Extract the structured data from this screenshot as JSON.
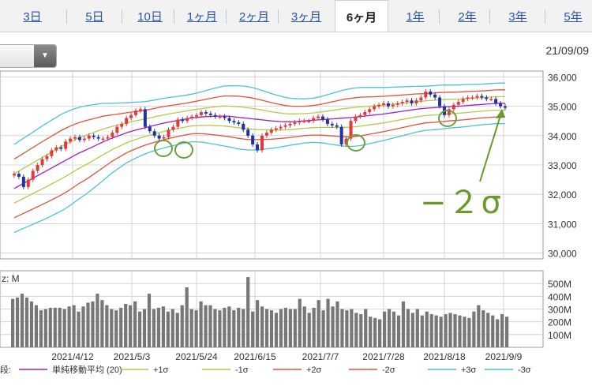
{
  "tabs": [
    {
      "label": "3日",
      "active": false
    },
    {
      "label": "5日",
      "active": false
    },
    {
      "label": "10日",
      "active": false
    },
    {
      "label": "1ヶ月",
      "active": false
    },
    {
      "label": "2ヶ月",
      "active": false
    },
    {
      "label": "3ヶ月",
      "active": false
    },
    {
      "label": "6ヶ月",
      "active": true
    },
    {
      "label": "1年",
      "active": false
    },
    {
      "label": "2年",
      "active": false
    },
    {
      "label": "3年",
      "active": false
    },
    {
      "label": "5年",
      "active": false
    }
  ],
  "date_label": "21/09/09",
  "annotation": "−２σ",
  "chart_data": {
    "type": "candlestick",
    "price_axis": {
      "ylim": [
        29800,
        36200
      ],
      "ticks": [
        "30,000",
        "31,000",
        "32,000",
        "33,000",
        "34,000",
        "35,000",
        "36,000"
      ]
    },
    "volume_axis": {
      "label": "z: M",
      "ylim": [
        0,
        600
      ],
      "ticks": [
        "100M",
        "200M",
        "300M",
        "400M",
        "500M"
      ]
    },
    "x_labels": [
      "2021/4/12",
      "2021/5/3",
      "2021/5/24",
      "2021/6/15",
      "2021/7/7",
      "2021/7/28",
      "2021/8/18",
      "2021/9/9"
    ],
    "close": [
      32700,
      32600,
      32250,
      32500,
      32800,
      33000,
      33200,
      33300,
      33500,
      33600,
      33550,
      33800,
      33900,
      33950,
      33850,
      33900,
      34000,
      33950,
      33900,
      33900,
      33950,
      34100,
      34300,
      34400,
      34600,
      34700,
      34850,
      34900,
      34300,
      34150,
      34000,
      33900,
      33950,
      34200,
      34300,
      34550,
      34500,
      34600,
      34650,
      34700,
      34800,
      34750,
      34700,
      34650,
      34650,
      34600,
      34500,
      34450,
      34400,
      34200,
      34000,
      33700,
      33500,
      34000,
      34100,
      34200,
      34250,
      34300,
      34350,
      34400,
      34450,
      34500,
      34500,
      34500,
      34600,
      34650,
      34550,
      34400,
      34350,
      34300,
      33700,
      33900,
      34500,
      34650,
      34700,
      34800,
      34900,
      35000,
      35050,
      35100,
      35000,
      35050,
      35100,
      35150,
      35200,
      35100,
      35200,
      35300,
      35500,
      35400,
      35300,
      35000,
      34700,
      34900,
      35050,
      35150,
      35250,
      35300,
      35300,
      35350,
      35300,
      35250,
      35250,
      35100,
      35000,
      34950
    ],
    "ma20": [
      32200,
      32350,
      32500,
      32650,
      32800,
      32950,
      33100,
      33250,
      33400,
      33520,
      33650,
      33780,
      33900,
      34000,
      34100,
      34180,
      34250,
      34320,
      34390,
      34450,
      34500,
      34550,
      34600,
      34630,
      34650,
      34660,
      34670,
      34650,
      34620,
      34590,
      34560,
      34530,
      34500,
      34480,
      34470,
      34480,
      34500,
      34520,
      34540,
      34560,
      34580,
      34600,
      34620,
      34650,
      34680,
      34710,
      34740,
      34780,
      34820,
      34860,
      34900,
      34930,
      34950,
      34970,
      34990,
      35000,
      35020,
      35040,
      35060,
      35080,
      35100,
      35100
    ],
    "volume": [
      380,
      390,
      420,
      390,
      360,
      330,
      290,
      300,
      310,
      310,
      310,
      300,
      320,
      330,
      280,
      320,
      350,
      360,
      420,
      370,
      330,
      300,
      290,
      310,
      340,
      330,
      360,
      280,
      300,
      420,
      300,
      310,
      320,
      280,
      300,
      270,
      330,
      470,
      300,
      290,
      360,
      330,
      330,
      300,
      290,
      310,
      320,
      290,
      310,
      300,
      550,
      280,
      370,
      320,
      300,
      290,
      270,
      300,
      310,
      300,
      300,
      380,
      320,
      270,
      310,
      370,
      290,
      380,
      320,
      360,
      300,
      290,
      300,
      270,
      260,
      300,
      240,
      230,
      220,
      280,
      300,
      280,
      250,
      360,
      300,
      270,
      300,
      250,
      280,
      260,
      250,
      240,
      260,
      270,
      260,
      250,
      240,
      230,
      280,
      330,
      290,
      270,
      250,
      220,
      260,
      240
    ],
    "legend": [
      {
        "name": "単純移動平均 (20)",
        "color": "#a020c0"
      },
      {
        "name": "+1σ",
        "color": "#b6c94a"
      },
      {
        "name": "-1σ",
        "color": "#b6c94a"
      },
      {
        "name": "+2σ",
        "color": "#e0543a"
      },
      {
        "name": "-2σ",
        "color": "#e0543a"
      },
      {
        "name": "+3σ",
        "color": "#4cc3d6"
      },
      {
        "name": "-3σ",
        "color": "#4cc3d6"
      }
    ],
    "legend_prefix": "段:",
    "sigma": [
      500,
      510,
      520,
      530,
      540,
      545,
      550,
      540,
      520,
      500,
      470,
      440,
      400,
      370,
      340,
      320,
      300,
      290,
      285,
      280,
      275,
      270,
      270,
      280,
      300,
      320,
      340,
      350,
      360,
      360,
      350,
      330,
      310,
      290,
      270,
      260,
      250,
      250,
      260,
      280,
      300,
      320,
      330,
      330,
      320,
      310,
      300,
      290,
      280,
      270,
      260,
      250,
      250,
      250,
      245,
      240,
      240,
      235,
      230,
      230,
      230,
      230
    ]
  }
}
